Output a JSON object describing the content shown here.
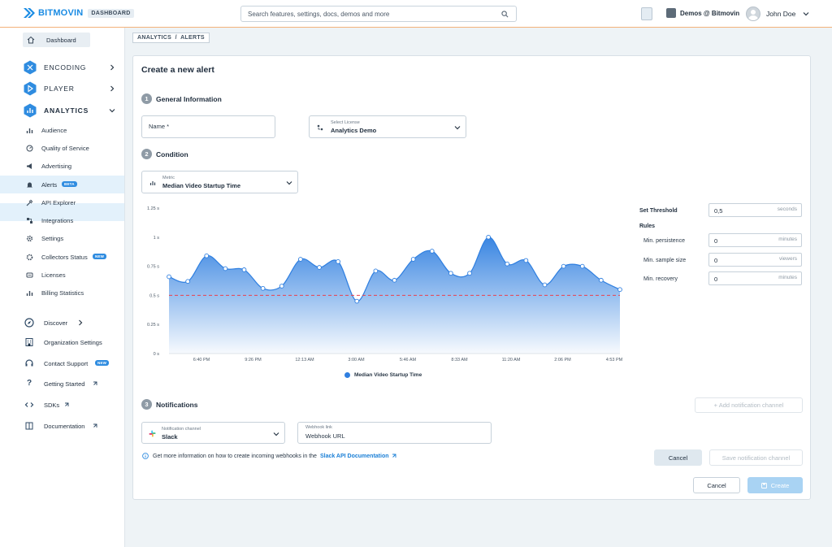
{
  "header": {
    "brand": "BITMOVIN",
    "badge": "DASHBOARD",
    "search_placeholder": "Search features, settings, docs, demos and more",
    "org": "Demos @ Bitmovin",
    "user": "John Doe"
  },
  "sidebar": {
    "dashboard": "Dashboard",
    "sections": [
      {
        "label": "ENCODING",
        "color": "#2f8ce0"
      },
      {
        "label": "PLAYER",
        "color": "#2f8ce0"
      },
      {
        "label": "ANALYTICS",
        "color": "#2f8ce0"
      }
    ],
    "analytics_items": [
      {
        "label": "Audience",
        "icon": "bar-chart-icon"
      },
      {
        "label": "Quality of Service",
        "icon": "gauge-icon"
      },
      {
        "label": "Advertising",
        "icon": "megaphone-icon"
      },
      {
        "label": "Alerts",
        "icon": "bell-icon",
        "badge": "BETA",
        "active": true
      },
      {
        "label": "API Explorer",
        "icon": "api-icon"
      },
      {
        "label": "Integrations",
        "icon": "integrations-icon"
      },
      {
        "label": "Settings",
        "icon": "gear-icon"
      },
      {
        "label": "Collectors Status",
        "icon": "collectors-icon",
        "badge": "NEW"
      },
      {
        "label": "Licenses",
        "icon": "license-icon"
      },
      {
        "label": "Billing Statistics",
        "icon": "billing-icon"
      }
    ],
    "lower_items": [
      {
        "label": "Discover",
        "icon": "compass-icon"
      },
      {
        "label": "Organization Settings",
        "icon": "building-icon"
      },
      {
        "label": "Contact Support",
        "icon": "headset-icon",
        "badge": "NEW"
      },
      {
        "label": "Getting Started",
        "icon": "question-icon"
      },
      {
        "label": "SDKs",
        "icon": "code-icon"
      },
      {
        "label": "Documentation",
        "icon": "book-icon"
      }
    ]
  },
  "breadcrumb": "ANALYTICS  /  ALERTS",
  "card": {
    "title": "Create a new alert",
    "step1": {
      "num": "1",
      "title": "General Information"
    },
    "name_placeholder": "Name *",
    "license_label": "Select License",
    "license_value": "Analytics Demo",
    "step2": {
      "num": "2",
      "title": "Condition"
    },
    "metric_label": "Metric",
    "metric_value": "Median Video Startup Time",
    "step3": {
      "num": "3",
      "title": "Notifications"
    },
    "add_channel": "+ Add notification channel",
    "channel_label": "Notification channel",
    "channel_value": "Slack",
    "webhook_label": "Webhook link",
    "webhook_placeholder": "Webhook URL",
    "info_text": "Get more information on how to create incoming webhooks in the",
    "info_link": "Slack API Documentation",
    "cancel_channel": "Cancel",
    "save_channel": "Save notification channel",
    "cancel": "Cancel",
    "create": "Create"
  },
  "threshold": {
    "set_threshold": "Set Threshold",
    "threshold_value": "0,5",
    "threshold_unit": "seconds",
    "rules": "Rules",
    "persistence_label": "Min. persistence",
    "persistence_value": "0",
    "persistence_unit": "minutes",
    "sample_label": "Min. sample size",
    "sample_value": "0",
    "sample_unit": "viewers",
    "recovery_label": "Min. recovery",
    "recovery_value": "0",
    "recovery_unit": "minutes"
  },
  "chart_data": {
    "type": "area",
    "title": "",
    "xlabel": "",
    "ylabel": "",
    "x_ticks": [
      "6:40 PM",
      "9:26 PM",
      "12:13 AM",
      "3:00 AM",
      "5:46 AM",
      "8:33 AM",
      "11:20 AM",
      "2:06 PM",
      "4:53 PM"
    ],
    "y_ticks": [
      "0 s",
      "0.25 s",
      "0.5 s",
      "0.75 s",
      "1 s",
      "1.25 s"
    ],
    "ylim": [
      0,
      1.25
    ],
    "threshold": 0.5,
    "series": [
      {
        "name": "Median Video Startup Time",
        "color": "#2f7fe0",
        "values": [
          0.66,
          0.62,
          0.84,
          0.73,
          0.72,
          0.56,
          0.58,
          0.81,
          0.74,
          0.79,
          0.45,
          0.71,
          0.63,
          0.81,
          0.88,
          0.69,
          0.69,
          1.0,
          0.77,
          0.8,
          0.59,
          0.75,
          0.75,
          0.63,
          0.55
        ]
      }
    ],
    "legend": "bottom",
    "grid": false
  }
}
